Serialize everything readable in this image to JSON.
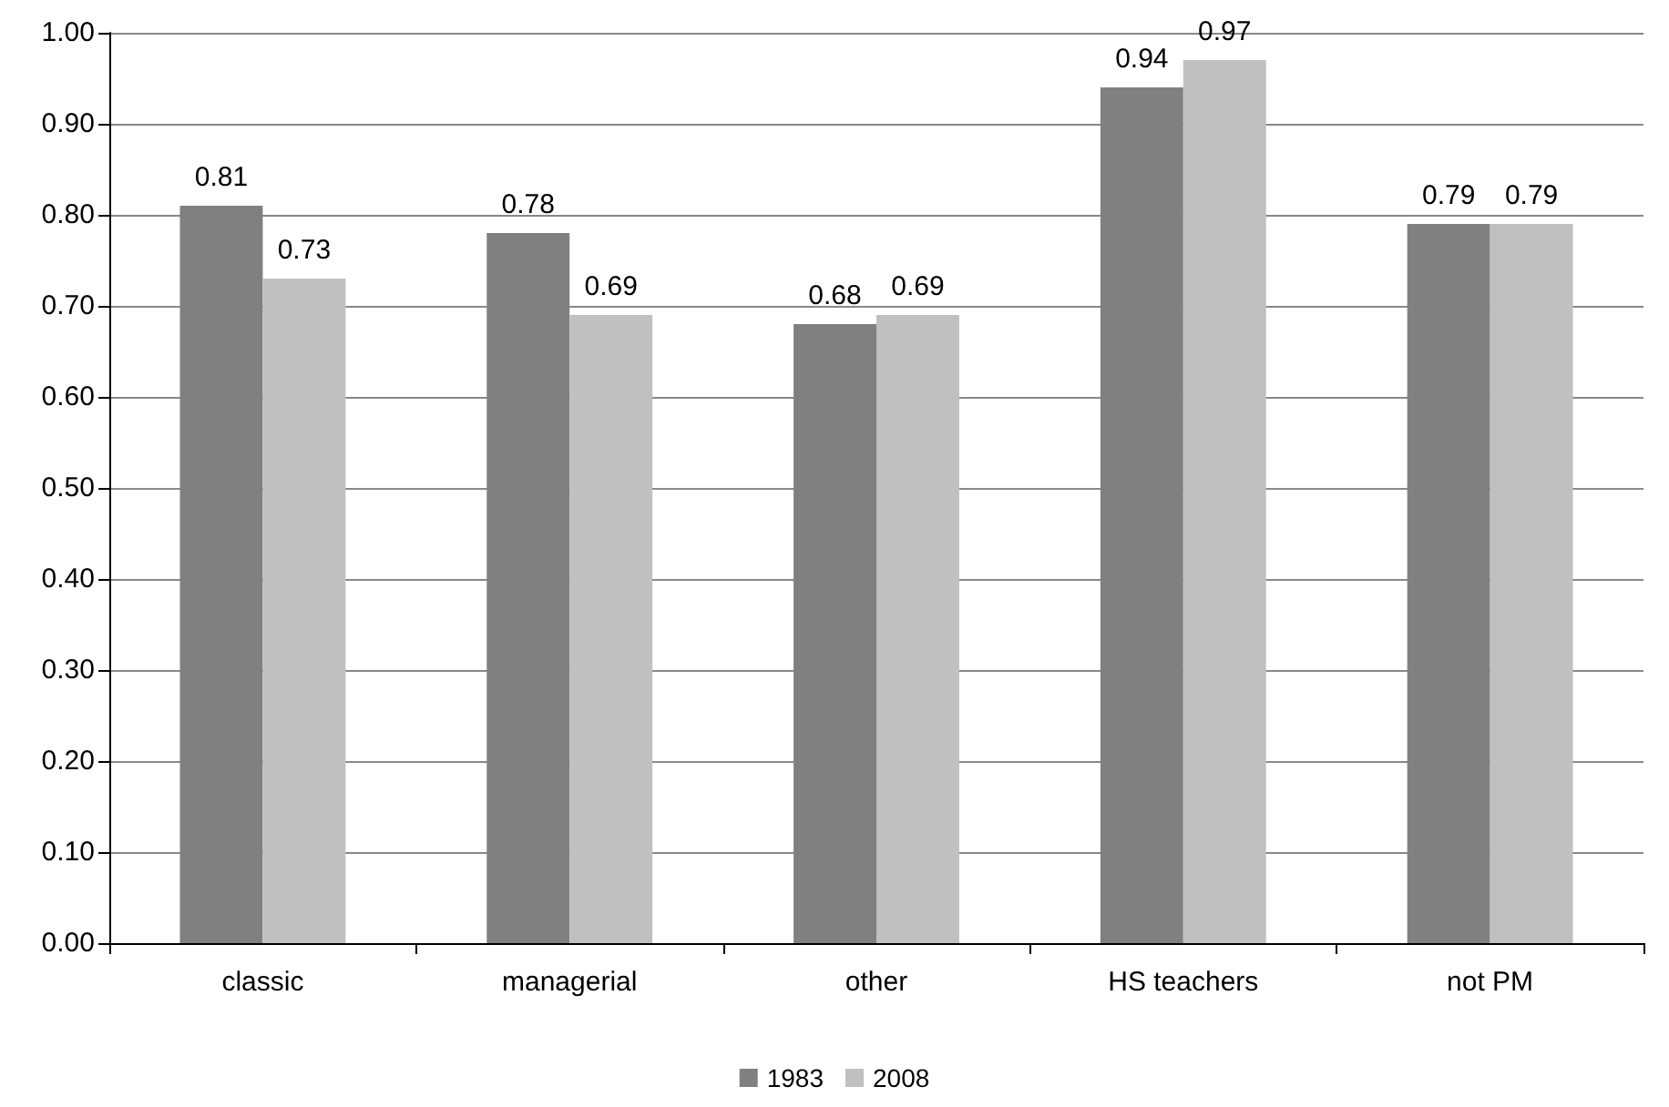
{
  "chart_data": {
    "type": "bar",
    "categories": [
      "classic",
      "managerial",
      "other",
      "HS teachers",
      "not PM"
    ],
    "series": [
      {
        "name": "1983",
        "color": "#808080",
        "values": [
          0.81,
          0.78,
          0.68,
          0.94,
          0.79
        ]
      },
      {
        "name": "2008",
        "color": "#c0c0c0",
        "values": [
          0.73,
          0.69,
          0.69,
          0.97,
          0.79
        ]
      }
    ],
    "ylim": [
      0,
      1
    ],
    "yticks": [
      {
        "value": 0,
        "label": "0.00"
      },
      {
        "value": 0.1,
        "label": "0.10"
      },
      {
        "value": 0.2,
        "label": "0.20"
      },
      {
        "value": 0.3,
        "label": "0.30"
      },
      {
        "value": 0.4,
        "label": "0.40"
      },
      {
        "value": 0.5,
        "label": "0.50"
      },
      {
        "value": 0.6,
        "label": "0.60"
      },
      {
        "value": 0.7,
        "label": "0.70"
      },
      {
        "value": 0.8,
        "label": "0.80"
      },
      {
        "value": 0.9,
        "label": "0.90"
      },
      {
        "value": 1,
        "label": "1.00"
      }
    ],
    "grid": "y",
    "legend": "bottom",
    "data_labels": true
  }
}
